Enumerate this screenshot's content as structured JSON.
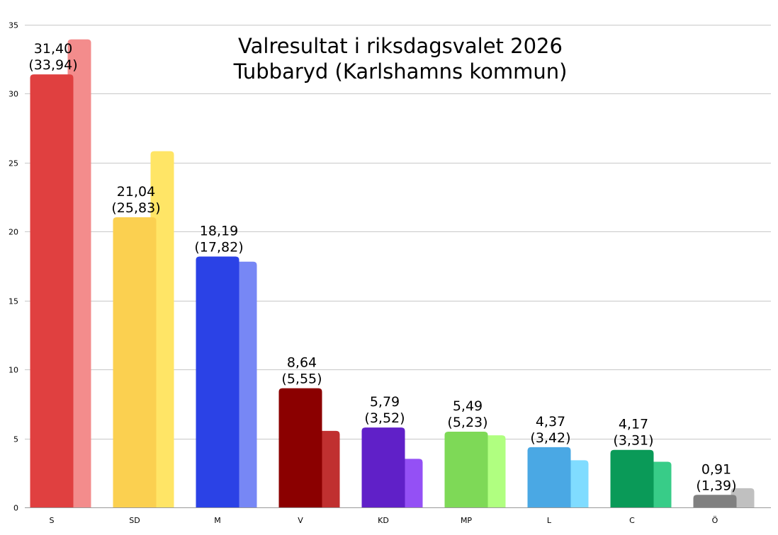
{
  "chart_data": {
    "type": "bar",
    "title": [
      "Valresultat i riksdagsvalet 2026",
      "Tubbaryd (Karlshamns kommun)"
    ],
    "categories": [
      "S",
      "SD",
      "M",
      "V",
      "KD",
      "MP",
      "L",
      "C",
      "Ö"
    ],
    "series": [
      {
        "values": [
          31.4,
          21.04,
          18.19,
          8.64,
          5.79,
          5.49,
          4.37,
          4.17,
          0.91
        ],
        "labels": [
          "31,40",
          "21,04",
          "18,19",
          "8,64",
          "5,79",
          "5,49",
          "4,37",
          "4,17",
          "0,91"
        ],
        "colors": [
          "#e04040",
          "#fbd050",
          "#2b42e6",
          "#8b0000",
          "#6020c8",
          "#7ed957",
          "#4aa8e4",
          "#0a9a58",
          "#808080"
        ]
      },
      {
        "values": [
          33.94,
          25.83,
          17.82,
          5.55,
          3.52,
          5.23,
          3.42,
          3.31,
          1.39
        ],
        "labels": [
          "(33,94)",
          "(25,83)",
          "(17,82)",
          "(5,55)",
          "(3,52)",
          "(5,23)",
          "(3,42)",
          "(3,31)",
          "(1,39)"
        ],
        "colors": [
          "#f38c8c",
          "#ffe566",
          "#7787f5",
          "#c03030",
          "#9450f5",
          "#b0ff80",
          "#80dcff",
          "#38cc88",
          "#c0c0c0"
        ]
      }
    ],
    "ylim": [
      0,
      35
    ],
    "yticks": [
      0,
      5,
      10,
      15,
      20,
      25,
      30,
      35
    ],
    "ytick_labels": [
      "0",
      "5",
      "10",
      "15",
      "20",
      "25",
      "30",
      "35"
    ],
    "grid": true,
    "legend": "none"
  }
}
